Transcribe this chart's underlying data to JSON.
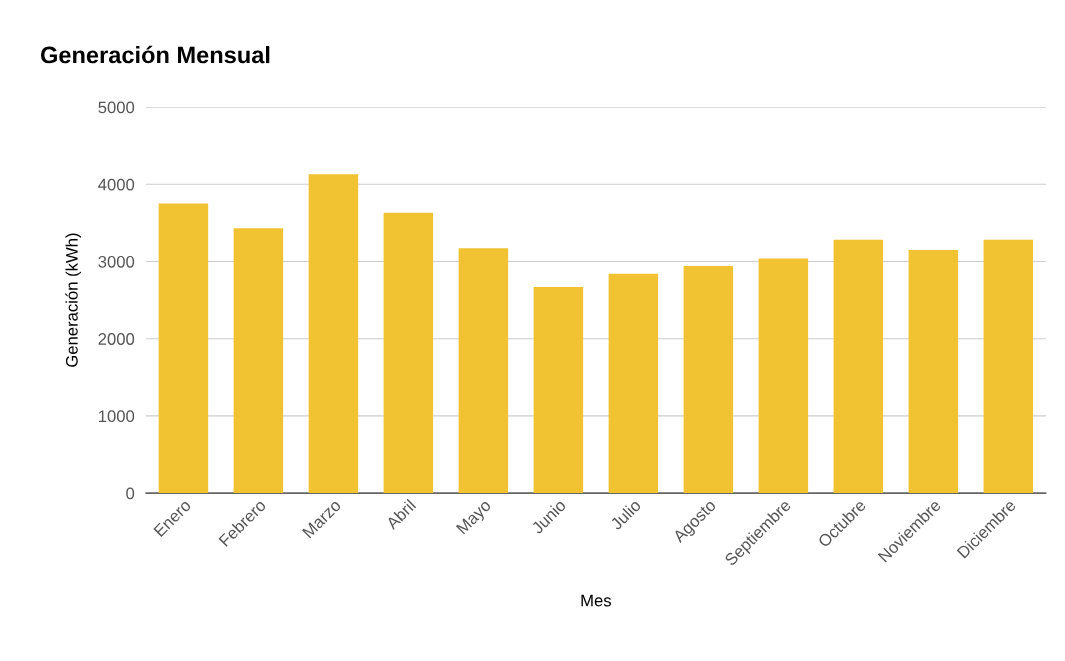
{
  "chart_data": {
    "type": "bar",
    "title": "Generación Mensual",
    "xlabel": "Mes",
    "ylabel": "Generación (kWh)",
    "categories": [
      "Enero",
      "Febrero",
      "Marzo",
      "Abril",
      "Mayo",
      "Junio",
      "Julio",
      "Agosto",
      "Septiembre",
      "Octubre",
      "Noviembre",
      "Diciembre"
    ],
    "values": [
      3750,
      3430,
      4130,
      3630,
      3170,
      2670,
      2840,
      2940,
      3040,
      3280,
      3150,
      3280
    ],
    "color": "#f1c232",
    "ylim": [
      0,
      5000
    ],
    "yticks": [
      0,
      1000,
      2000,
      3000,
      4000,
      5000
    ],
    "grid": "y",
    "legend": false
  }
}
